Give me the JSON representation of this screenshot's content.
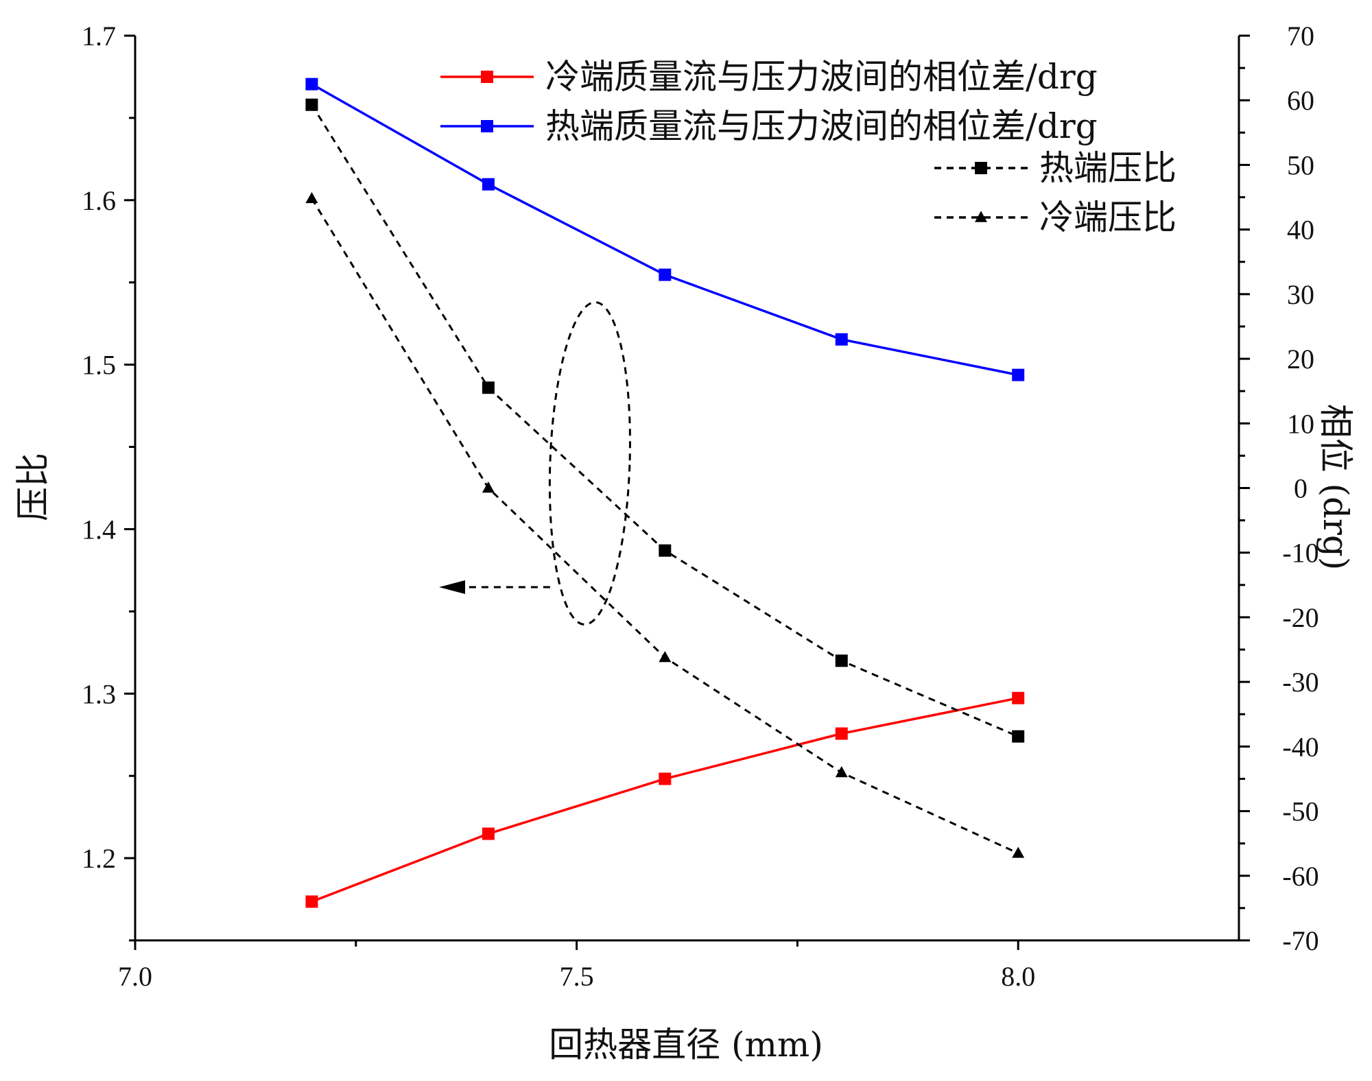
{
  "chart_data": {
    "type": "line",
    "xlabel": "回热器直径 (mm)",
    "ylabel_left": "压比",
    "ylabel_right": "相位 (drg)",
    "xlim": [
      7.0,
      8.25
    ],
    "ylim_left": [
      1.15,
      1.7
    ],
    "ylim_right": [
      -70,
      70
    ],
    "x_ticks": [
      "7.0",
      "7.5",
      "8.0"
    ],
    "y_left_ticks": [
      "1.2",
      "1.3",
      "1.4",
      "1.5",
      "1.6",
      "1.7"
    ],
    "y_right_ticks": [
      "-70",
      "-60",
      "-50",
      "-40",
      "-30",
      "-20",
      "-10",
      "0",
      "10",
      "20",
      "30",
      "40",
      "50",
      "60",
      "70"
    ],
    "x": [
      7.2,
      7.4,
      7.6,
      7.8,
      8.0
    ],
    "series": [
      {
        "name": "冷端质量流与压力波间的相位差/drg",
        "axis": "right",
        "color": "#ff0000",
        "style": "solid",
        "marker": "square",
        "values": [
          -64,
          -53.5,
          -45,
          -38,
          -32.5
        ]
      },
      {
        "name": "热端质量流与压力波间的相位差/drg",
        "axis": "right",
        "color": "#0000ff",
        "style": "solid",
        "marker": "square",
        "values": [
          62.5,
          47,
          33,
          23,
          17.5
        ]
      },
      {
        "name": "热端压比",
        "axis": "left",
        "color": "#000000",
        "style": "dashed",
        "marker": "square",
        "values": [
          1.658,
          1.486,
          1.387,
          1.32,
          1.274
        ]
      },
      {
        "name": "冷端压比",
        "axis": "left",
        "color": "#000000",
        "style": "dashed",
        "marker": "triangle",
        "values": [
          1.601,
          1.425,
          1.322,
          1.252,
          1.203
        ]
      }
    ],
    "legend_position": "top-right",
    "annotations": [
      {
        "type": "dashed-ellipse",
        "center_x": 7.515,
        "center_y_left": 1.44
      },
      {
        "type": "arrow",
        "direction": "left",
        "points_to": "left-axis"
      }
    ]
  }
}
